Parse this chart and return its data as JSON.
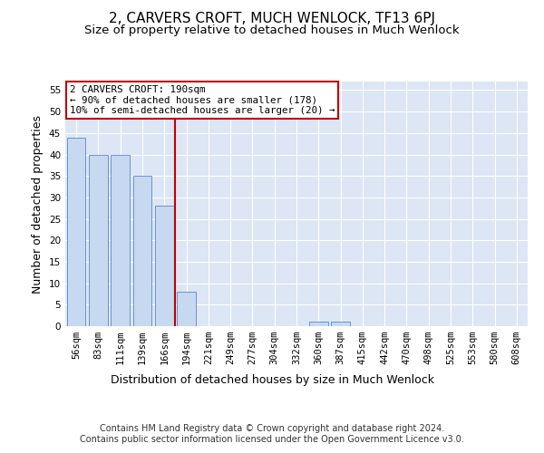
{
  "title": "2, CARVERS CROFT, MUCH WENLOCK, TF13 6PJ",
  "subtitle": "Size of property relative to detached houses in Much Wenlock",
  "xlabel": "Distribution of detached houses by size in Much Wenlock",
  "ylabel": "Number of detached properties",
  "categories": [
    "56sqm",
    "83sqm",
    "111sqm",
    "139sqm",
    "166sqm",
    "194sqm",
    "221sqm",
    "249sqm",
    "277sqm",
    "304sqm",
    "332sqm",
    "360sqm",
    "387sqm",
    "415sqm",
    "442sqm",
    "470sqm",
    "498sqm",
    "525sqm",
    "553sqm",
    "580sqm",
    "608sqm"
  ],
  "values": [
    44,
    40,
    40,
    35,
    28,
    8,
    0,
    0,
    0,
    0,
    0,
    1,
    1,
    0,
    0,
    0,
    0,
    0,
    0,
    0,
    0
  ],
  "bar_color": "#c6d9f0",
  "bar_edge_color": "#4472c4",
  "highlight_line_color": "#c00000",
  "annotation_box_color": "#c00000",
  "annotation_text": "2 CARVERS CROFT: 190sqm\n← 90% of detached houses are smaller (178)\n10% of semi-detached houses are larger (20) →",
  "ylim": [
    0,
    57
  ],
  "yticks": [
    0,
    5,
    10,
    15,
    20,
    25,
    30,
    35,
    40,
    45,
    50,
    55
  ],
  "footer": "Contains HM Land Registry data © Crown copyright and database right 2024.\nContains public sector information licensed under the Open Government Licence v3.0.",
  "background_color": "#dce6f5",
  "fig_background": "#ffffff",
  "title_fontsize": 11,
  "subtitle_fontsize": 9.5,
  "axis_label_fontsize": 9,
  "tick_fontsize": 7.5,
  "footer_fontsize": 7
}
